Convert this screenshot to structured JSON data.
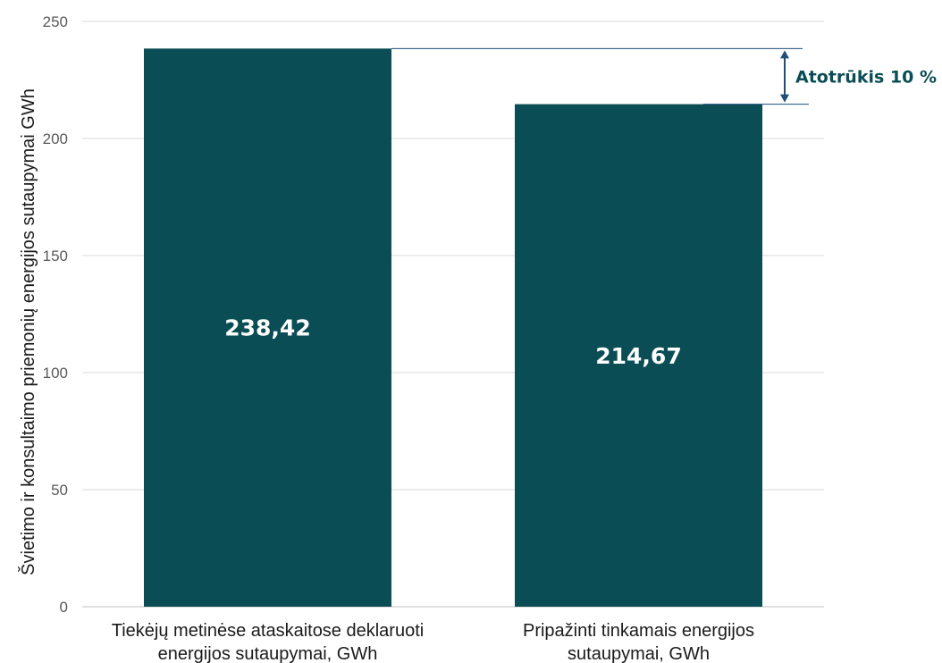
{
  "chart_data": {
    "type": "bar",
    "categories": [
      [
        "Tiekėjų metinėse ataskaitose deklaruoti",
        "energijos sutaupymai, GWh"
      ],
      [
        "Pripažinti tinkamais energijos",
        "sutaupymai, GWh"
      ]
    ],
    "values": [
      238.42,
      214.67
    ],
    "data_labels": [
      "238,42",
      "214,67"
    ],
    "ylabel": "Švietimo ir konsultaimo priemonių energijos sutaupymai GWh",
    "ylim": [
      0,
      250
    ],
    "yticks": [
      0,
      50,
      100,
      150,
      200,
      250
    ],
    "grid": true,
    "bar_color": "#0a4d55",
    "annotation": {
      "text": "Atotrūkis 10 %",
      "color": "#0a4d55"
    }
  }
}
